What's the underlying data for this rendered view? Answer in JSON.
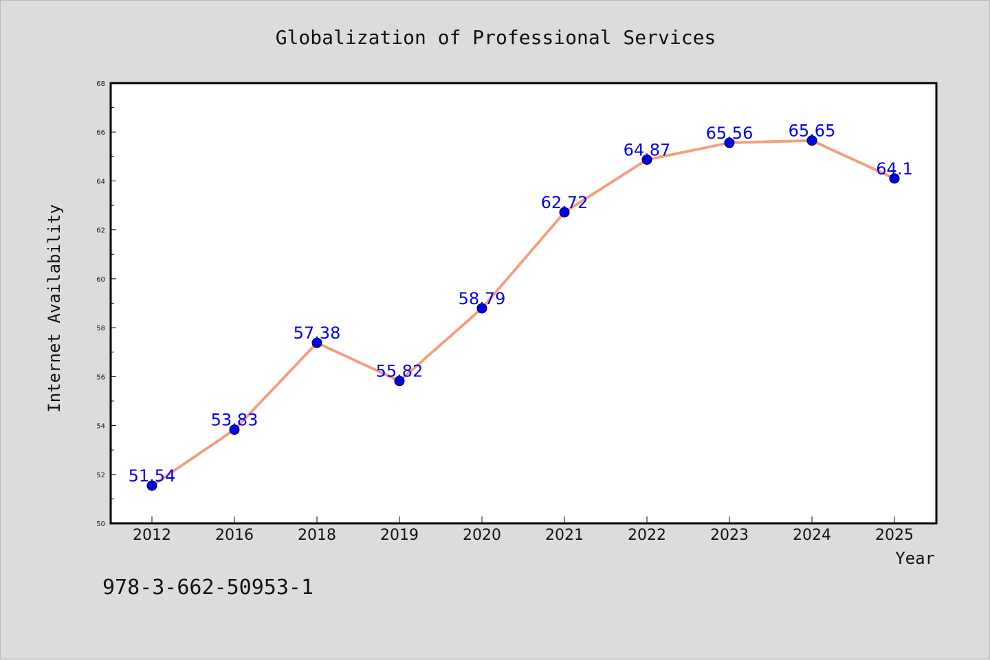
{
  "chart_data": {
    "type": "line",
    "title": "Globalization of Professional Services",
    "xlabel": "Year",
    "ylabel": "Internet Availability",
    "categories": [
      "2012",
      "2016",
      "2018",
      "2019",
      "2020",
      "2021",
      "2022",
      "2023",
      "2024",
      "2025"
    ],
    "series": [
      {
        "values": [
          51.54,
          53.83,
          57.38,
          55.82,
          58.79,
          62.72,
          64.87,
          65.56,
          65.65,
          64.1
        ],
        "data_labels": [
          "51.54",
          "53.83",
          "57.38",
          "55.82",
          "58.79",
          "62.72",
          "64.87",
          "65.56",
          "65.65",
          "64.1"
        ]
      }
    ],
    "ylim": [
      50,
      68
    ],
    "yticks": [
      50,
      52,
      54,
      56,
      58,
      60,
      62,
      64,
      66,
      68
    ],
    "grid": false,
    "legend": "none",
    "colors": {
      "line": "#f4a07d",
      "marker": "#0000ee",
      "data_label": "#0000ee",
      "plot_background": "#ffffff",
      "figure_background": "#dcdcdc"
    }
  },
  "footer": {
    "isbn": "978-3-662-50953-1"
  }
}
